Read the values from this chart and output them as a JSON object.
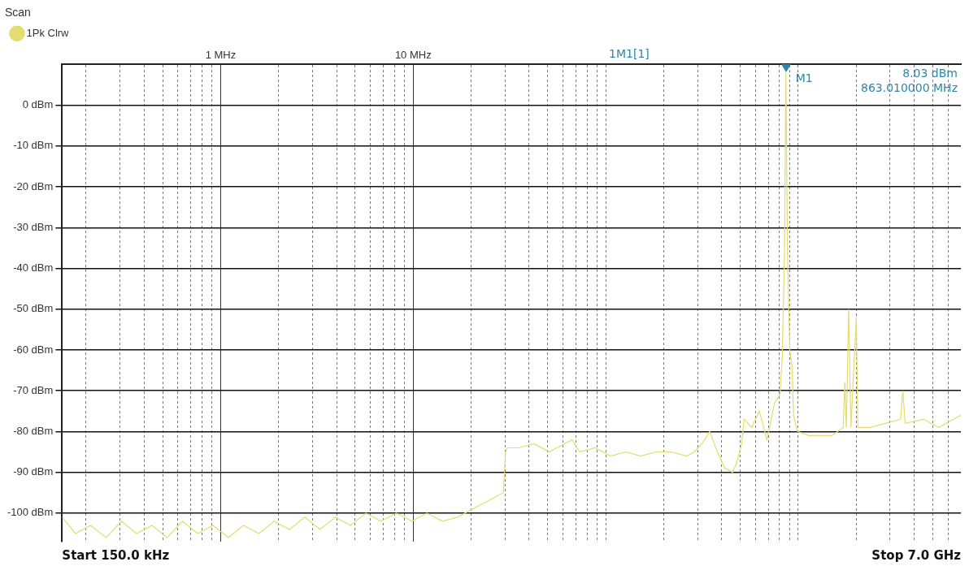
{
  "chart_data": {
    "type": "line",
    "title": "Scan",
    "xlim": [
      0.15,
      7000
    ],
    "ylim": [
      -107,
      10
    ],
    "log": "x",
    "grid": true,
    "legend": "top left",
    "marker": "none",
    "line_style": "solid",
    "xticks": [
      {
        "value": 0.2,
        "label": null
      },
      {
        "value": 0.3,
        "label": null
      },
      {
        "value": 0.4,
        "label": null
      },
      {
        "value": 0.5,
        "label": null
      },
      {
        "value": 0.6,
        "label": null
      },
      {
        "value": 0.7,
        "label": null
      },
      {
        "value": 0.8,
        "label": null
      },
      {
        "value": 0.9,
        "label": null
      },
      {
        "value": 1,
        "label": "1 MHz"
      },
      {
        "value": 2,
        "label": null
      },
      {
        "value": 3,
        "label": null
      },
      {
        "value": 4,
        "label": null
      },
      {
        "value": 5,
        "label": null
      },
      {
        "value": 6,
        "label": null
      },
      {
        "value": 7,
        "label": null
      },
      {
        "value": 8,
        "label": null
      },
      {
        "value": 9,
        "label": null
      },
      {
        "value": 10,
        "label": "10 MHz"
      },
      {
        "value": 20,
        "label": null
      },
      {
        "value": 30,
        "label": null
      },
      {
        "value": 40,
        "label": null
      },
      {
        "value": 50,
        "label": null
      },
      {
        "value": 60,
        "label": null
      },
      {
        "value": 70,
        "label": null
      },
      {
        "value": 80,
        "label": null
      },
      {
        "value": 90,
        "label": null
      },
      {
        "value": 100,
        "label": null
      },
      {
        "value": 200,
        "label": null
      },
      {
        "value": 300,
        "label": null
      },
      {
        "value": 400,
        "label": null
      },
      {
        "value": 500,
        "label": null
      },
      {
        "value": 600,
        "label": null
      },
      {
        "value": 700,
        "label": null
      },
      {
        "value": 800,
        "label": null
      },
      {
        "value": 900,
        "label": null
      },
      {
        "value": 1000,
        "label": null
      },
      {
        "value": 2000,
        "label": null
      },
      {
        "value": 3000,
        "label": null
      },
      {
        "value": 4000,
        "label": null
      },
      {
        "value": 5000,
        "label": null
      },
      {
        "value": 6000,
        "label": null
      }
    ],
    "yticks": [
      {
        "value": 0,
        "label": "0 dBm"
      },
      {
        "value": -10,
        "label": "-10 dBm"
      },
      {
        "value": -20,
        "label": "-20 dBm"
      },
      {
        "value": -30,
        "label": "-30 dBm"
      },
      {
        "value": -40,
        "label": "-40 dBm"
      },
      {
        "value": -50,
        "label": "-50 dBm"
      },
      {
        "value": -60,
        "label": "-60 dBm"
      },
      {
        "value": -70,
        "label": "-70 dBm"
      },
      {
        "value": -80,
        "label": "-80 dBm"
      },
      {
        "value": -90,
        "label": "-90 dBm"
      },
      {
        "value": -100,
        "label": "-100 dBm"
      }
    ],
    "x": [
      0.15,
      0.176,
      0.211,
      0.254,
      0.305,
      0.366,
      0.44,
      0.527,
      0.633,
      0.76,
      0.913,
      1.096,
      1.315,
      1.579,
      1.896,
      2.276,
      2.733,
      3.28,
      3.94,
      4.73,
      5.68,
      6.81,
      8.18,
      9.82,
      11.8,
      14.2,
      17.0,
      20.4,
      24.5,
      29.4,
      30.2,
      30.8,
      35.3,
      42.4,
      50.9,
      61.1,
      66.9,
      73.3,
      88,
      106,
      127,
      152,
      183,
      219,
      264,
      289,
      316,
      347,
      380,
      416,
      456,
      477,
      509,
      523,
      573,
      628,
      688,
      754,
      804,
      826,
      849,
      863.01,
      880,
      904,
      929,
      946,
      991,
      1137,
      1496,
      1714,
      1746,
      1778,
      1828,
      1879,
      2004,
      2042,
      2362,
      2833,
      3402,
      3497,
      3594,
      4477,
      5372,
      7000
    ],
    "series": [
      {
        "name": "1Pk Clrw",
        "color": "#e3dc6e",
        "values": [
          -101,
          -105,
          -103,
          -106,
          -102,
          -105,
          -103,
          -106,
          -102,
          -105,
          -103,
          -106,
          -103,
          -105,
          -102,
          -104,
          -101,
          -104,
          -101,
          -103,
          -100,
          -102,
          -100,
          -102,
          -100,
          -102,
          -101,
          -99,
          -97,
          -95,
          -85,
          -84,
          -84,
          -83,
          -85,
          -83,
          -82,
          -85,
          -84,
          -86,
          -85,
          -86,
          -85,
          -85,
          -86,
          -85,
          -83,
          -80,
          -85,
          -89,
          -90,
          -88,
          -83,
          -77,
          -79,
          -75,
          -82,
          -73,
          -71,
          -62,
          -36,
          8.03,
          -36,
          -60,
          -64,
          -76,
          -80,
          -81,
          -81,
          -79,
          -68,
          -79,
          -50,
          -79,
          -52,
          -79,
          -79,
          -78,
          -77,
          -70,
          -78,
          -77,
          -79,
          -76
        ]
      }
    ],
    "annotations": [
      "Start 150.0 kHz",
      "Stop 7.0 GHz",
      "1M1[1]",
      "8.03 dBm",
      "863.010000 MHz",
      {
        "text": "M1",
        "x": 863.01,
        "y": 8.03
      }
    ]
  }
}
